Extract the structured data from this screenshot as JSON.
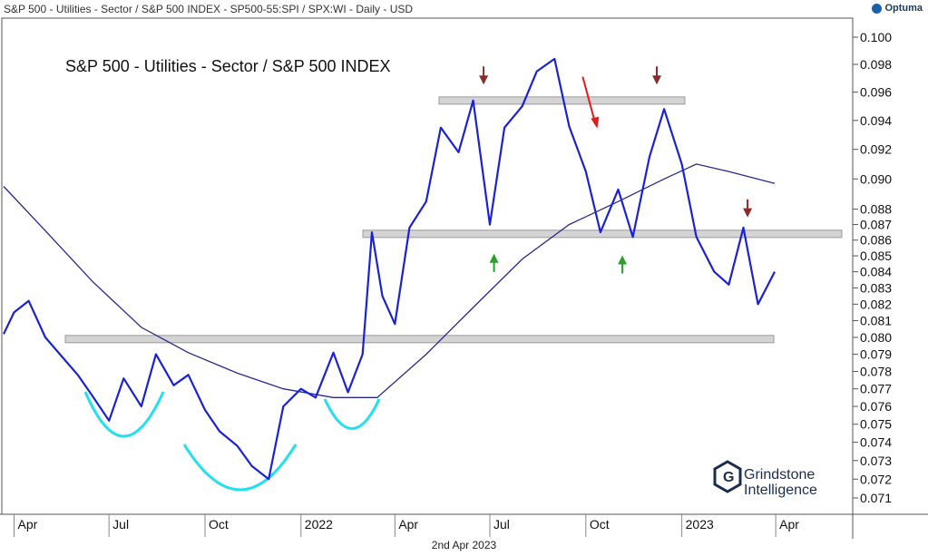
{
  "header": {
    "title": "S&P 500 - Utilities - Sector / S&P 500 INDEX - SP500-55:SPI / SPX:WI - Daily - USD",
    "brand": "Optuma"
  },
  "footer": {
    "date": "2nd Apr 2023"
  },
  "watermark": {
    "line1": "Grindstone",
    "line2": "Intelligence"
  },
  "colors": {
    "price": "#1a22d6",
    "ma": "#2a2a8c",
    "arc": "#22e0f0",
    "resistance_box": "#d4d4d4",
    "arrow_down": "#8b2a2a",
    "arrow_up": "#2aa02a",
    "arrow_red": "#e21b1b"
  },
  "chart_data": {
    "type": "line",
    "title": "S&P 500 - Utilities - Sector / S&P 500 INDEX",
    "xlabel": "",
    "ylabel": "",
    "ylim": [
      0.0705,
      0.1015
    ],
    "y_scale": "log",
    "yticks": [
      "0.100",
      "0.098",
      "0.096",
      "0.094",
      "0.092",
      "0.090",
      "0.088",
      "0.087",
      "0.086",
      "0.085",
      "0.084",
      "0.083",
      "0.082",
      "0.081",
      "0.080",
      "0.079",
      "0.078",
      "0.077",
      "0.076",
      "0.075",
      "0.074",
      "0.073",
      "0.072",
      "0.071"
    ],
    "xticks": [
      "Apr",
      "Jul",
      "Oct",
      "2022",
      "Apr",
      "Jul",
      "Oct",
      "2023",
      "Apr"
    ],
    "series": [
      {
        "x": [
          "2021-03-22",
          "2021-04-01",
          "2021-04-15",
          "2021-05-01",
          "2021-05-15",
          "2021-06-01",
          "2021-06-15",
          "2021-07-01",
          "2021-07-15",
          "2021-08-01",
          "2021-08-15",
          "2021-09-01",
          "2021-09-15",
          "2021-10-01",
          "2021-10-15",
          "2021-11-01",
          "2021-11-15",
          "2021-12-01",
          "2021-12-15",
          "2022-01-01",
          "2022-01-15",
          "2022-02-01",
          "2022-02-15",
          "2022-03-01",
          "2022-03-10",
          "2022-03-20",
          "2022-04-01",
          "2022-04-15",
          "2022-05-01",
          "2022-05-15",
          "2022-06-01",
          "2022-06-15",
          "2022-07-01",
          "2022-07-15",
          "2022-08-01",
          "2022-08-15",
          "2022-09-01",
          "2022-09-15",
          "2022-10-01",
          "2022-10-15",
          "2022-11-01",
          "2022-11-15",
          "2022-12-01",
          "2022-12-15",
          "2023-01-01",
          "2023-01-15",
          "2023-02-01",
          "2023-02-15",
          "2023-03-01",
          "2023-03-15",
          "2023-03-31"
        ],
        "values": [
          0.0802,
          0.0815,
          0.0822,
          0.08,
          0.079,
          0.0778,
          0.0766,
          0.0752,
          0.0776,
          0.076,
          0.079,
          0.0772,
          0.0778,
          0.0758,
          0.0746,
          0.0738,
          0.0727,
          0.072,
          0.076,
          0.077,
          0.0765,
          0.0791,
          0.0768,
          0.079,
          0.0865,
          0.0825,
          0.0808,
          0.0868,
          0.0885,
          0.0935,
          0.0918,
          0.0954,
          0.087,
          0.0935,
          0.095,
          0.0975,
          0.0984,
          0.0936,
          0.0905,
          0.0865,
          0.0893,
          0.0862,
          0.0915,
          0.0948,
          0.091,
          0.0862,
          0.084,
          0.0832,
          0.0868,
          0.082,
          0.084
        ]
      },
      {
        "x": [
          "2021-03-22",
          "2021-05-01",
          "2021-06-15",
          "2021-08-01",
          "2021-09-15",
          "2021-11-01",
          "2021-12-15",
          "2022-02-01",
          "2022-03-15",
          "2022-05-01",
          "2022-06-15",
          "2022-08-01",
          "2022-09-15",
          "2022-11-01",
          "2022-12-15",
          "2023-01-15",
          "2023-02-15",
          "2023-03-31"
        ],
        "values": [
          0.0895,
          0.0866,
          0.0834,
          0.0806,
          0.0791,
          0.0779,
          0.077,
          0.0765,
          0.0765,
          0.079,
          0.0818,
          0.0848,
          0.087,
          0.0885,
          0.09,
          0.091,
          0.0905,
          0.0897
        ]
      }
    ],
    "levels": [
      0.0954,
      0.0864,
      0.0799
    ],
    "markers": [
      {
        "date": "2022-06-25",
        "kind": "down"
      },
      {
        "date": "2022-07-05",
        "kind": "up"
      },
      {
        "date": "2022-09-28",
        "kind": "down-diagonal"
      },
      {
        "date": "2022-11-05",
        "kind": "up"
      },
      {
        "date": "2022-12-08",
        "kind": "down"
      },
      {
        "date": "2023-03-05",
        "kind": "down"
      }
    ]
  }
}
